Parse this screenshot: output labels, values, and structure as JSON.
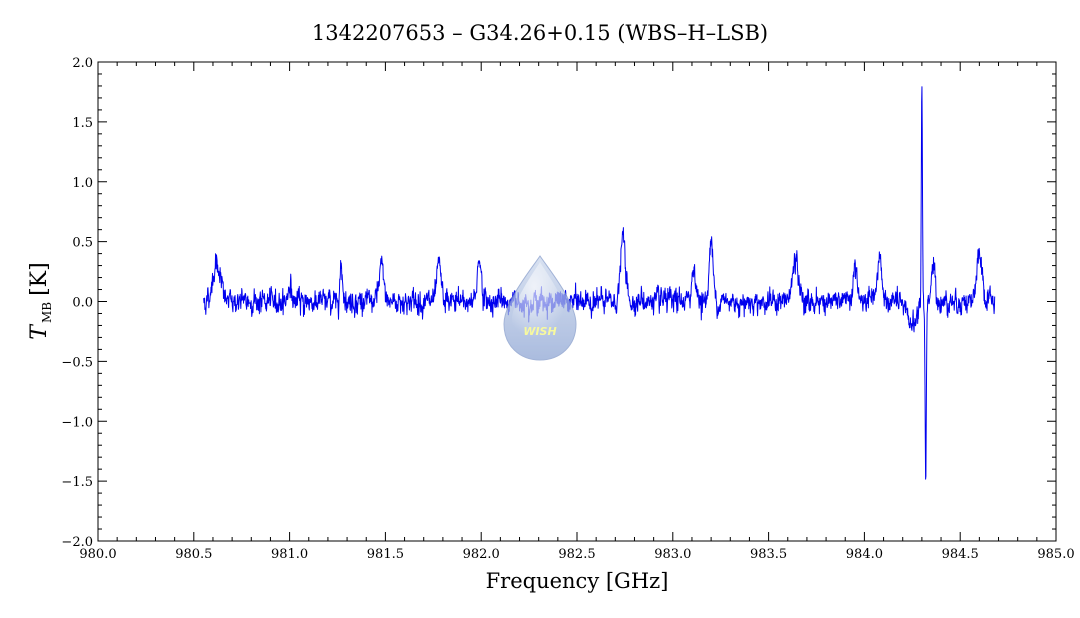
{
  "chart_data": {
    "type": "line",
    "title": "1342207653 – G34.26+0.15 (WBS–H–LSB)",
    "xlabel": "Frequency [GHz]",
    "ylabel_main": "T",
    "ylabel_sub": "MB",
    "ylabel_unit": "[K]",
    "xlim": [
      980.0,
      985.0
    ],
    "ylim": [
      -2.0,
      2.0
    ],
    "x_ticks": [
      980.0,
      980.5,
      981.0,
      981.5,
      982.0,
      982.5,
      983.0,
      983.5,
      984.0,
      984.5,
      985.0
    ],
    "x_tick_labels": [
      "980.0",
      "980.5",
      "981.0",
      "981.5",
      "982.0",
      "982.5",
      "983.0",
      "983.5",
      "984.0",
      "984.5",
      "985.0"
    ],
    "y_ticks": [
      -2.0,
      -1.5,
      -1.0,
      -0.5,
      0.0,
      0.5,
      1.0,
      1.5,
      2.0
    ],
    "y_tick_labels": [
      "−2.0",
      "−1.5",
      "−1.0",
      "−0.5",
      "0.0",
      "0.5",
      "1.0",
      "1.5",
      "2.0"
    ],
    "grid": false,
    "series_color": "#0000ee",
    "x_range": [
      980.55,
      984.68
    ],
    "baseline": 0.0,
    "noise_rms": 0.06,
    "features": [
      {
        "x": 980.62,
        "y": 0.32,
        "width": 0.02
      },
      {
        "x": 981.0,
        "y": 0.15,
        "width": 0.008
      },
      {
        "x": 981.27,
        "y": 0.28,
        "width": 0.008
      },
      {
        "x": 981.48,
        "y": 0.3,
        "width": 0.012
      },
      {
        "x": 981.78,
        "y": 0.32,
        "width": 0.01
      },
      {
        "x": 981.99,
        "y": 0.38,
        "width": 0.01
      },
      {
        "x": 982.74,
        "y": 0.55,
        "width": 0.012
      },
      {
        "x": 983.11,
        "y": 0.3,
        "width": 0.01
      },
      {
        "x": 983.2,
        "y": 0.5,
        "width": 0.01
      },
      {
        "x": 983.64,
        "y": 0.35,
        "width": 0.015
      },
      {
        "x": 983.95,
        "y": 0.3,
        "width": 0.01
      },
      {
        "x": 984.08,
        "y": 0.4,
        "width": 0.01
      },
      {
        "x": 984.25,
        "y": -0.18,
        "width": 0.03
      },
      {
        "x": 984.3,
        "y": 1.85,
        "width": 0.003
      },
      {
        "x": 984.32,
        "y": -1.55,
        "width": 0.003
      },
      {
        "x": 984.36,
        "y": 0.28,
        "width": 0.01
      },
      {
        "x": 984.6,
        "y": 0.35,
        "width": 0.015
      }
    ]
  },
  "logo": {
    "text": "WISH",
    "color_top": "#c9d6ec",
    "color_bottom": "#8ba3d3"
  }
}
